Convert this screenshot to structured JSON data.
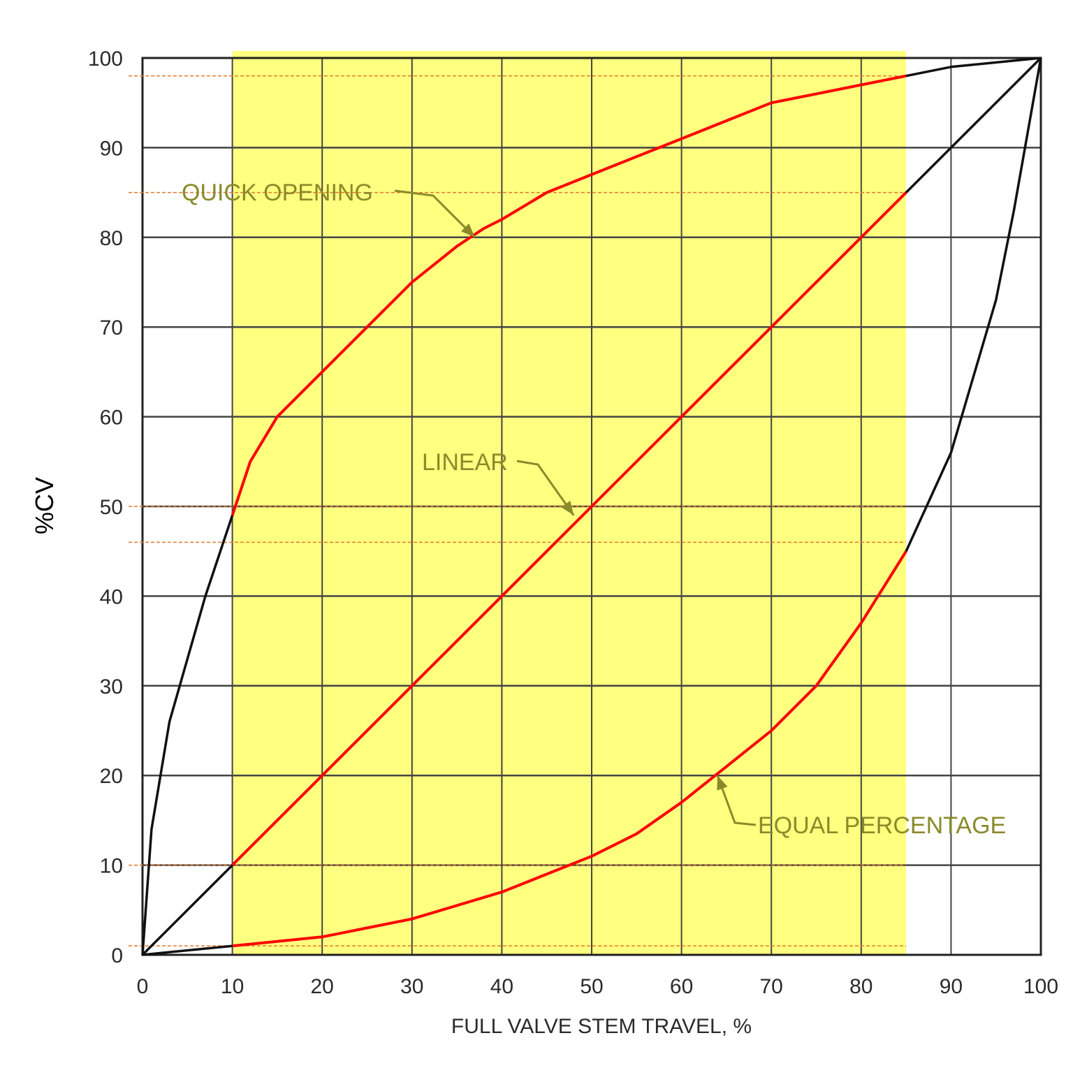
{
  "chart_data": {
    "type": "line",
    "title": "",
    "xlabel": "FULL VALVE STEM TRAVEL, %",
    "ylabel": "%CV",
    "xlim": [
      0,
      100
    ],
    "ylim": [
      0,
      100
    ],
    "x_ticks": [
      "0",
      "10",
      "20",
      "30",
      "40",
      "50",
      "60",
      "70",
      "80",
      "90",
      "100"
    ],
    "y_ticks": [
      "0",
      "10",
      "20",
      "30",
      "40",
      "50",
      "60",
      "70",
      "80",
      "90",
      "100"
    ],
    "grid": true,
    "highlight_region": {
      "x_range": [
        10,
        85
      ],
      "color": "#ffff80"
    },
    "reference_lines_y": [
      1,
      10,
      46,
      50,
      85,
      98
    ],
    "reference_line_color": "#e07a2a",
    "colors": {
      "curve": "#111111",
      "highlight_curve": "#ff0000",
      "annotation": "#8a8a2a"
    },
    "series": [
      {
        "name": "QUICK OPENING",
        "x": [
          0,
          1,
          3,
          5,
          7,
          10,
          12,
          15,
          20,
          25,
          30,
          35,
          38,
          40,
          45,
          50,
          55,
          60,
          65,
          70,
          75,
          80,
          85,
          90,
          95,
          100
        ],
        "y": [
          0,
          14,
          26,
          33,
          40,
          49,
          55,
          60,
          65,
          70,
          75,
          79,
          81,
          82,
          85,
          87,
          89,
          91,
          93,
          95,
          96,
          97,
          98,
          99,
          99.5,
          100
        ]
      },
      {
        "name": "LINEAR",
        "x": [
          0,
          10,
          20,
          30,
          40,
          50,
          60,
          70,
          80,
          85,
          90,
          100
        ],
        "y": [
          0,
          10,
          20,
          30,
          40,
          50,
          60,
          70,
          80,
          85,
          90,
          100
        ]
      },
      {
        "name": "EQUAL PERCENTAGE",
        "x": [
          0,
          10,
          20,
          30,
          40,
          50,
          55,
          60,
          65,
          70,
          75,
          80,
          85,
          90,
          95,
          97,
          100
        ],
        "y": [
          0,
          1,
          2,
          4,
          7,
          11,
          13.5,
          17,
          21,
          25,
          30,
          37,
          45,
          56,
          73,
          83,
          100
        ]
      }
    ],
    "annotations": [
      {
        "text": "QUICK OPENING",
        "target": [
          37,
          80
        ]
      },
      {
        "text": "LINEAR",
        "target": [
          48,
          49
        ]
      },
      {
        "text": "EQUAL PERCENTAGE",
        "target": [
          64,
          20
        ]
      }
    ]
  }
}
